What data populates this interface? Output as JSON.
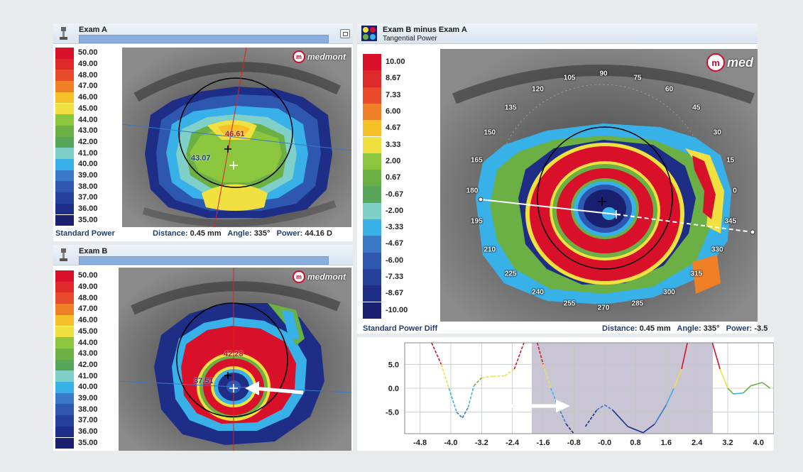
{
  "panel_a": {
    "title": "Exam A",
    "legend": [
      "50.00",
      "49.00",
      "48.00",
      "47.00",
      "46.00",
      "45.00",
      "44.00",
      "43.00",
      "42.00",
      "41.00",
      "40.00",
      "39.00",
      "38.00",
      "37.00",
      "36.00",
      "35.00"
    ],
    "legend_colors": [
      "#d8102a",
      "#e02a2a",
      "#ea4a2c",
      "#f08028",
      "#f5c028",
      "#f0e040",
      "#8cc63e",
      "#6ab044",
      "#58a65a",
      "#7fd0c8",
      "#38b0e8",
      "#3a78c8",
      "#2e58b0",
      "#24409a",
      "#1e2e86",
      "#1a2070"
    ],
    "logo": "medmont",
    "label_top": "46.61",
    "label_left": "43.07",
    "map_type": "Standard Power",
    "distance_label": "Distance:",
    "distance_value": "0.45 mm",
    "angle_label": "Angle:",
    "angle_value": "335°",
    "power_label": "Power:",
    "power_value": "44.16 D"
  },
  "panel_b": {
    "title": "Exam B",
    "legend": [
      "50.00",
      "49.00",
      "48.00",
      "47.00",
      "46.00",
      "45.00",
      "44.00",
      "43.00",
      "42.00",
      "41.00",
      "40.00",
      "39.00",
      "38.00",
      "37.00",
      "36.00",
      "35.00"
    ],
    "logo": "medmont",
    "label_top": "42.28",
    "label_left": "37.51"
  },
  "panel_diff": {
    "title": "Exam B minus Exam A",
    "subtitle": "Tangential Power",
    "legend": [
      "10.00",
      "8.67",
      "7.33",
      "6.00",
      "4.67",
      "3.33",
      "2.00",
      "0.67",
      "-0.67",
      "-2.00",
      "-3.33",
      "-4.67",
      "-6.00",
      "-7.33",
      "-8.67",
      "-10.00"
    ],
    "legend_colors": [
      "#d8102a",
      "#e02a2a",
      "#ea4a2c",
      "#f08028",
      "#f5c028",
      "#f0e040",
      "#8cc63e",
      "#6ab044",
      "#58a65a",
      "#7fd0c8",
      "#38b0e8",
      "#3a78c8",
      "#2e58b0",
      "#24409a",
      "#1e2e86",
      "#1a2070"
    ],
    "logo": "med",
    "angles": [
      "90",
      "75",
      "60",
      "45",
      "30",
      "15",
      "0",
      "345",
      "330",
      "315",
      "300",
      "285",
      "270",
      "255",
      "240",
      "225",
      "210",
      "195",
      "180",
      "165",
      "150",
      "135",
      "120",
      "105"
    ],
    "map_type": "Standard Power Diff",
    "distance_label": "Distance:",
    "distance_value": "0.45 mm",
    "angle_label": "Angle:",
    "angle_value": "335°",
    "power_label": "Power:",
    "power_value": "-3.5"
  },
  "profile": {
    "x_ticks": [
      "-4.8",
      "-4.0",
      "-3.2",
      "-2.4",
      "-1.6",
      "-0.8",
      "-0.0",
      "0.8",
      "1.6",
      "2.4",
      "3.2",
      "4.0"
    ],
    "y_ticks": [
      "5.0",
      "0.0",
      "-5.0"
    ]
  }
}
